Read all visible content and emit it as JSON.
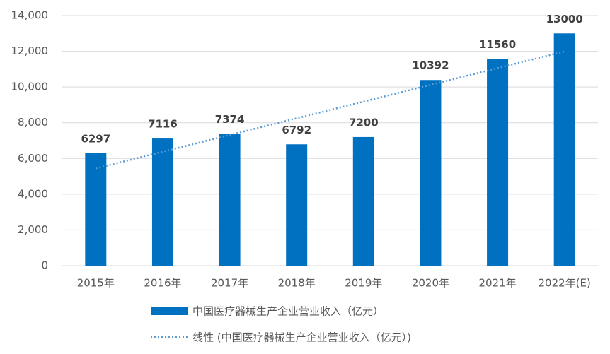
{
  "chart_data": {
    "type": "bar",
    "categories": [
      "2015年",
      "2016年",
      "2017年",
      "2018年",
      "2019年",
      "2020年",
      "2021年",
      "2022年(E)"
    ],
    "series": [
      {
        "name": "中国医疗器械生产企业营业收入（亿元）",
        "color": "#0070c0",
        "values": [
          6297,
          7116,
          7374,
          6792,
          7200,
          10392,
          11560,
          13000
        ]
      }
    ],
    "trendline": {
      "name": "线性 (中国医疗器械生产企业营业收入（亿元）)",
      "color": "#5b9bd5"
    },
    "ylim": [
      0,
      14000
    ],
    "yticks": [
      0,
      {
        "value": 2000,
        "label": "2,000"
      },
      {
        "value": 4000,
        "label": "4,000"
      },
      {
        "value": 6000,
        "label": "6,000"
      },
      {
        "value": 8000,
        "label": "8,000"
      },
      {
        "value": 10000,
        "label": "10,000"
      },
      {
        "value": 12000,
        "label": "12,000"
      },
      {
        "value": 14000,
        "label": "14,000"
      }
    ],
    "grid": true
  }
}
